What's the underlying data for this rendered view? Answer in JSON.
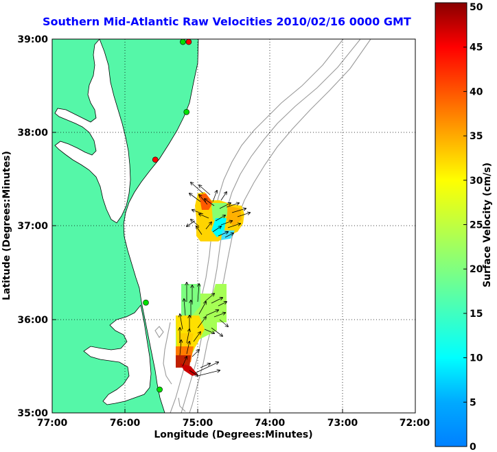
{
  "title": "Southern Mid-Atlantic Raw Velocities 2010/02/16 0000 GMT",
  "map": {
    "xlabel": "Longitude (Degrees:Minutes)",
    "ylabel": "Latitude (Degrees:Minutes)",
    "x_ticks": [
      "77:00",
      "76:00",
      "75:00",
      "74:00",
      "73:00",
      "72:00"
    ],
    "y_ticks": [
      "39:00",
      "38:00",
      "37:00",
      "36:00",
      "35:00"
    ],
    "lon_range": [
      -77,
      -72
    ],
    "lat_range": [
      35,
      39
    ],
    "land_color": "#55f7a8",
    "grid": "dotted"
  },
  "colorbar": {
    "label": "Surface Velocity (cm/s)",
    "ticks": [
      "0",
      "5",
      "10",
      "15",
      "20",
      "25",
      "30",
      "35",
      "40",
      "45",
      "50"
    ],
    "range": [
      0,
      50
    ],
    "colormap": "jet"
  },
  "stations": [
    {
      "lon": -75.12,
      "lat": 38.97,
      "color": "#ff0000"
    },
    {
      "lon": -75.2,
      "lat": 38.97,
      "color": "#00e000"
    },
    {
      "lon": -75.15,
      "lat": 38.22,
      "color": "#00e000"
    },
    {
      "lon": -75.58,
      "lat": 37.71,
      "color": "#ff0000"
    },
    {
      "lon": -75.71,
      "lat": 36.18,
      "color": "#00e000"
    },
    {
      "lon": -75.52,
      "lat": 35.25,
      "color": "#00e000"
    }
  ]
}
